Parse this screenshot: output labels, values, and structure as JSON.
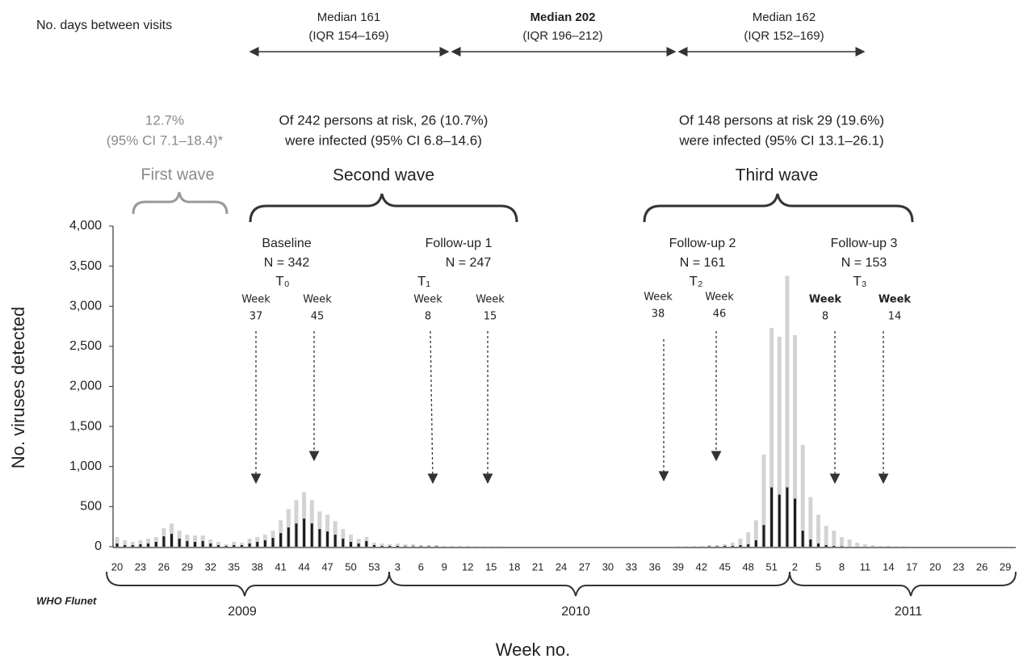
{
  "chart_data": {
    "type": "bar",
    "ylabel": "No. viruses detected",
    "xlabel": "Week no.",
    "source": "WHO Flunet",
    "years": [
      "2009",
      "2010",
      "2011"
    ],
    "ylim": [
      0,
      4000
    ],
    "yticks": [
      0,
      500,
      {
        "value": 1000,
        "label": "1,000"
      },
      {
        "value": 1500,
        "label": "1,500"
      },
      {
        "value": 2000,
        "label": "2,000"
      },
      {
        "value": 2500,
        "label": "2,500"
      },
      {
        "value": 3000,
        "label": "3,000"
      },
      {
        "value": 3500,
        "label": "3,500"
      },
      {
        "value": 4000,
        "label": "4,000"
      }
    ],
    "categories": [
      "20",
      null,
      null,
      "23",
      null,
      null,
      "26",
      null,
      null,
      "29",
      null,
      null,
      "32",
      null,
      null,
      "35",
      null,
      null,
      "38",
      null,
      null,
      "41",
      null,
      null,
      "44",
      null,
      null,
      "47",
      null,
      null,
      "50",
      null,
      null,
      "53",
      null,
      null,
      "3",
      null,
      null,
      "6",
      null,
      null,
      "9",
      null,
      null,
      "12",
      null,
      null,
      "15",
      null,
      null,
      "18",
      null,
      null,
      "21",
      null,
      null,
      "24",
      null,
      null,
      "27",
      null,
      null,
      "30",
      null,
      null,
      "33",
      null,
      null,
      "36",
      null,
      null,
      "39",
      null,
      null,
      "42",
      null,
      null,
      "45",
      null,
      null,
      "48",
      null,
      null,
      "51",
      null,
      null,
      "2",
      null,
      null,
      "5",
      null,
      null,
      "8",
      null,
      null,
      "11",
      null,
      null,
      "14",
      null,
      null,
      "17",
      null,
      null,
      "20",
      null,
      null,
      "23",
      null,
      null,
      "26",
      null,
      null,
      "29",
      null
    ],
    "series": [
      {
        "color": "#d3d3d3",
        "values": [
          120,
          80,
          60,
          80,
          100,
          120,
          230,
          290,
          200,
          150,
          140,
          140,
          90,
          60,
          30,
          60,
          50,
          100,
          120,
          150,
          200,
          330,
          470,
          580,
          680,
          580,
          440,
          400,
          320,
          220,
          150,
          100,
          120,
          50,
          40,
          30,
          40,
          30,
          30,
          20,
          20,
          20,
          10,
          10,
          10,
          10,
          5,
          5,
          5,
          5,
          0,
          0,
          0,
          0,
          0,
          0,
          0,
          0,
          0,
          0,
          0,
          0,
          0,
          0,
          0,
          0,
          0,
          0,
          0,
          0,
          0,
          0,
          5,
          5,
          10,
          10,
          20,
          20,
          30,
          50,
          100,
          180,
          330,
          1150,
          2730,
          2620,
          3380,
          2640,
          1270,
          620,
          400,
          260,
          200,
          120,
          90,
          50,
          30,
          20,
          10,
          10,
          5,
          5,
          0,
          0,
          0,
          0,
          0,
          0,
          0,
          0,
          0,
          0,
          0,
          0,
          0,
          0
        ]
      },
      {
        "color": "#1a1a1a",
        "values": [
          40,
          20,
          20,
          30,
          40,
          60,
          130,
          160,
          100,
          70,
          60,
          70,
          40,
          20,
          10,
          20,
          20,
          40,
          60,
          80,
          110,
          170,
          240,
          290,
          350,
          290,
          220,
          190,
          150,
          100,
          60,
          40,
          70,
          20,
          10,
          10,
          10,
          5,
          5,
          5,
          5,
          5,
          0,
          0,
          0,
          0,
          0,
          0,
          0,
          0,
          0,
          0,
          0,
          0,
          0,
          0,
          0,
          0,
          0,
          0,
          0,
          0,
          0,
          0,
          0,
          0,
          0,
          0,
          0,
          0,
          0,
          0,
          0,
          0,
          0,
          0,
          5,
          5,
          10,
          10,
          20,
          30,
          80,
          270,
          740,
          650,
          740,
          600,
          200,
          90,
          40,
          20,
          10,
          5,
          0,
          0,
          0,
          0,
          0,
          0,
          0,
          0,
          0,
          0,
          0,
          0,
          0,
          0,
          0,
          0,
          0,
          0,
          0,
          0,
          0,
          0
        ]
      }
    ],
    "intervals_header": "No. days between visits",
    "intervals": [
      {
        "median": "Median 161",
        "iqr": "(IQR 154–169)"
      },
      {
        "median": "Median 202",
        "iqr": "(IQR 196–212)"
      },
      {
        "median": "Median 162",
        "iqr": "(IQR 152–169)"
      }
    ],
    "waves": [
      {
        "name": "First wave",
        "line1": "12.7%",
        "line2": "(95% CI 7.1–18.4)*"
      },
      {
        "name": "Second wave",
        "line1": "Of 242 persons at risk, 26 (10.7%)",
        "line2": "were infected (95% CI 6.8–14.6)"
      },
      {
        "name": "Third wave",
        "line1": "Of 148 persons at risk 29 (19.6%)",
        "line2": "were infected (95% CI 13.1–26.1)"
      }
    ],
    "visits": [
      {
        "label": "Baseline",
        "n": "N = 342",
        "t": "T₀",
        "weeks": [
          {
            "word": "Week",
            "num": "37"
          },
          {
            "word": "Week",
            "num": "45"
          }
        ]
      },
      {
        "label": "Follow-up 1",
        "n": "N = 247",
        "t": "T₁",
        "weeks": [
          {
            "word": "Week",
            "num": "8"
          },
          {
            "word": "Week",
            "num": "15"
          }
        ]
      },
      {
        "label": "Follow-up 2",
        "n": "N = 161",
        "t": "T₂",
        "weeks": [
          {
            "word": "Week",
            "num": "38"
          },
          {
            "word": "Week",
            "num": "46"
          }
        ]
      },
      {
        "label": "Follow-up 3",
        "n": "N = 153",
        "t": "T₃",
        "weeks": [
          {
            "word": "Week",
            "num": "8"
          },
          {
            "word": "Week",
            "num": "14"
          }
        ]
      }
    ]
  }
}
